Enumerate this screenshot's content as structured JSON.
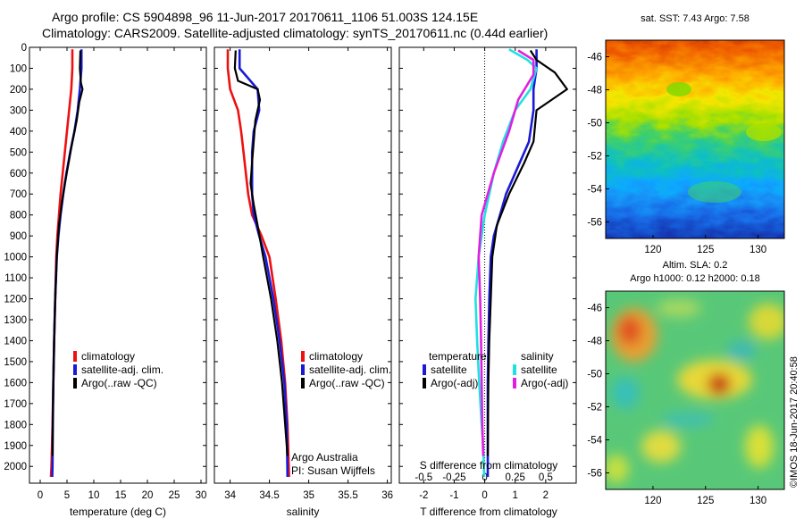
{
  "header": {
    "line1": "Argo profile: CS 5904898_96 11-Jun-2017 20170611_1106 51.003S 124.15E",
    "line2": "Climatology: CARS2009. Satellite-adjusted climatology: synTS_20170611.nc (0.44d earlier)"
  },
  "colors": {
    "climatology": "#ee1111",
    "satellite": "#1a1ad6",
    "argo": "#000000",
    "s_satellite": "#22e0e0",
    "s_argo": "#e020e0"
  },
  "chart_data": [
    {
      "type": "line",
      "id": "temperature",
      "xlabel": "temperature (deg C)",
      "xlim": [
        -2,
        31
      ],
      "xticks": [
        0,
        5,
        10,
        15,
        20,
        25,
        30
      ],
      "xtick_labels": [
        "0",
        "5",
        "10",
        "15",
        "20",
        "25",
        "30"
      ],
      "ylim": [
        0,
        2080
      ],
      "yticks": [
        0,
        100,
        200,
        300,
        400,
        500,
        600,
        700,
        800,
        900,
        1000,
        1100,
        1200,
        1300,
        1400,
        1500,
        1600,
        1700,
        1800,
        1900,
        2000
      ],
      "ytick_labels": [
        "0",
        "100",
        "200",
        "300",
        "400",
        "500",
        "600",
        "700",
        "800",
        "900",
        "1000",
        "1100",
        "1200",
        "1300",
        "1400",
        "1500",
        "1600",
        "1700",
        "1800",
        "1900",
        "2000"
      ],
      "legend": [
        "climatology",
        "satellite-adj. clim.",
        "Argo(..raw -QC)"
      ],
      "legend_position": "lower-center",
      "series": [
        {
          "name": "climatology",
          "color_key": "climatology",
          "x": [
            6.0,
            6.0,
            5.8,
            5.4,
            5.0,
            4.6,
            4.2,
            3.8,
            3.5,
            3.2,
            3.0,
            2.8,
            2.6,
            2.45,
            2.3,
            2.2,
            2.1,
            2.0
          ],
          "y": [
            10,
            100,
            200,
            300,
            400,
            500,
            600,
            700,
            800,
            900,
            1000,
            1200,
            1400,
            1600,
            1800,
            1900,
            2000,
            2050
          ]
        },
        {
          "name": "satellite-adj. clim.",
          "color_key": "satellite",
          "x": [
            7.7,
            7.7,
            7.4,
            7.0,
            6.4,
            5.6,
            4.9,
            4.3,
            3.8,
            3.4,
            3.1,
            2.8,
            2.6,
            2.45,
            2.35,
            2.3,
            2.25
          ],
          "y": [
            10,
            100,
            200,
            300,
            400,
            500,
            600,
            700,
            800,
            900,
            1000,
            1200,
            1400,
            1600,
            1800,
            2000,
            2050
          ]
        },
        {
          "name": "Argo(..raw -QC)",
          "color_key": "argo",
          "x": [
            7.5,
            7.4,
            7.6,
            7.9,
            7.3,
            6.8,
            6.0,
            5.3,
            4.6,
            4.0,
            3.5,
            3.1,
            2.8,
            2.6,
            2.45,
            2.35,
            2.3
          ],
          "y": [
            15,
            100,
            170,
            200,
            260,
            350,
            450,
            550,
            650,
            750,
            850,
            1000,
            1200,
            1400,
            1600,
            1800,
            1950
          ]
        }
      ]
    },
    {
      "type": "line",
      "id": "salinity",
      "xlabel": "salinity",
      "xlim": [
        33.8,
        36.05
      ],
      "xticks": [
        34,
        34.5,
        35,
        35.5,
        36
      ],
      "xtick_labels": [
        "34",
        "34.5",
        "35",
        "35.5",
        "36"
      ],
      "ylim": [
        0,
        2080
      ],
      "legend": [
        "climatology",
        "satellite-adj. clim.",
        "Argo(..raw -QC)"
      ],
      "legend_position": "lower-center",
      "annotation": [
        "Argo Australia",
        "PI: Susan Wijffels"
      ],
      "series": [
        {
          "name": "climatology",
          "color_key": "climatology",
          "x": [
            33.97,
            33.97,
            34.0,
            34.1,
            34.14,
            34.17,
            34.2,
            34.23,
            34.28,
            34.4,
            34.5,
            34.58,
            34.65,
            34.7,
            34.73,
            34.75
          ],
          "y": [
            10,
            100,
            200,
            300,
            400,
            500,
            600,
            700,
            800,
            900,
            1000,
            1200,
            1400,
            1600,
            1800,
            2050
          ]
        },
        {
          "name": "satellite-adj. clim.",
          "color_key": "satellite",
          "x": [
            34.12,
            34.12,
            34.35,
            34.37,
            34.3,
            34.28,
            34.28,
            34.28,
            34.3,
            34.37,
            34.45,
            34.55,
            34.63,
            34.69,
            34.72,
            34.73
          ],
          "y": [
            10,
            100,
            200,
            300,
            400,
            500,
            600,
            700,
            800,
            900,
            1000,
            1200,
            1400,
            1600,
            1800,
            2050
          ]
        },
        {
          "name": "Argo(..raw -QC)",
          "color_key": "argo",
          "x": [
            34.07,
            34.06,
            34.1,
            34.35,
            34.38,
            34.32,
            34.3,
            34.28,
            34.26,
            34.3,
            34.35,
            34.42,
            34.52,
            34.6,
            34.66,
            34.7,
            34.73
          ],
          "y": [
            15,
            100,
            160,
            200,
            250,
            350,
            450,
            550,
            650,
            750,
            850,
            1000,
            1200,
            1400,
            1600,
            1800,
            1950
          ]
        }
      ]
    },
    {
      "type": "line",
      "id": "difference",
      "xlabel": "T difference from climatology",
      "xlabel_top": "S difference from climatology",
      "xlim": [
        -2.8,
        3.0
      ],
      "xticks": [
        -2,
        -1,
        0,
        1,
        2
      ],
      "xtick_labels": [
        "-2",
        "-1",
        "0",
        "1",
        "2"
      ],
      "s_ticks": [
        -0.5,
        -0.25,
        0,
        0.25,
        0.5
      ],
      "s_tick_labels": [
        "-0.5",
        "-0.25",
        "0",
        "0.25",
        "0.5"
      ],
      "ylim": [
        0,
        2080
      ],
      "legend_headers": [
        "temperature",
        "salinity"
      ],
      "legend": [
        "satellite",
        "Argo(-adj)",
        "satellite",
        "Argo(-adj)"
      ],
      "legend_position": "lower-center",
      "series": [
        {
          "name": "satellite",
          "quantity": "temperature",
          "color_key": "satellite",
          "x": [
            1.7,
            1.7,
            1.6,
            1.6,
            1.45,
            1.0,
            0.7,
            0.5,
            0.3,
            0.2,
            0.15,
            0.12,
            0.1,
            0.1,
            0.1
          ],
          "y": [
            10,
            100,
            200,
            300,
            450,
            600,
            700,
            800,
            900,
            1000,
            1200,
            1400,
            1600,
            1800,
            2050
          ]
        },
        {
          "name": "Argo(-adj)",
          "quantity": "temperature",
          "color_key": "argo",
          "x": [
            1.5,
            1.7,
            2.3,
            2.7,
            1.7,
            1.6,
            1.3,
            0.8,
            0.4,
            0.25,
            0.2,
            0.15,
            0.12,
            0.1
          ],
          "y": [
            15,
            60,
            120,
            200,
            300,
            450,
            550,
            700,
            850,
            1000,
            1200,
            1400,
            1600,
            1950
          ]
        },
        {
          "name": "satellite",
          "quantity": "salinity",
          "color_key": "s_satellite",
          "x": [
            0.8,
            1.4,
            1.7,
            1.5,
            1.0,
            0.6,
            0.3,
            0.0,
            -0.2,
            -0.3,
            -0.25,
            -0.18,
            -0.1,
            -0.05,
            -0.02
          ],
          "y": [
            10,
            60,
            100,
            200,
            300,
            450,
            600,
            800,
            1000,
            1200,
            1400,
            1600,
            1800,
            1900,
            2050
          ]
        },
        {
          "name": "Argo(-adj)",
          "quantity": "salinity",
          "color_key": "s_argo",
          "x": [
            1.1,
            1.6,
            1.6,
            1.1,
            0.8,
            0.3,
            -0.1,
            -0.2,
            -0.15,
            -0.12,
            -0.1,
            -0.08,
            -0.05
          ],
          "y": [
            15,
            60,
            130,
            250,
            400,
            600,
            800,
            1000,
            1200,
            1400,
            1600,
            1800,
            1950
          ]
        }
      ]
    },
    {
      "type": "heatmap",
      "id": "sst-map",
      "title": "sat. SST: 7.43 Argo: 7.58",
      "xlim": [
        115.5,
        132.5
      ],
      "ylim": [
        -57,
        -45
      ],
      "xticks": [
        120,
        125,
        130
      ],
      "xtick_labels": [
        "120",
        "125",
        "130"
      ],
      "yticks": [
        -46,
        -48,
        -50,
        -52,
        -54,
        -56
      ],
      "ytick_labels": [
        "-46",
        "-48",
        "-50",
        "-52",
        "-54",
        "-56"
      ]
    },
    {
      "type": "heatmap",
      "id": "sla-map",
      "title_lines": [
        "Altim. SLA: 0.2",
        "Argo h1000: 0.12 h2000: 0.18"
      ],
      "xlim": [
        115.5,
        132.5
      ],
      "ylim": [
        -57,
        -45
      ],
      "xticks": [
        120,
        125,
        130
      ],
      "xtick_labels": [
        "120",
        "125",
        "130"
      ],
      "yticks": [
        -46,
        -48,
        -50,
        -52,
        -54,
        -56
      ],
      "ytick_labels": [
        "-46",
        "-48",
        "-50",
        "-52",
        "-54",
        "-56"
      ]
    }
  ],
  "footer": {
    "stamp": "©IMOS 18-Jun-2017 20:40:58"
  }
}
